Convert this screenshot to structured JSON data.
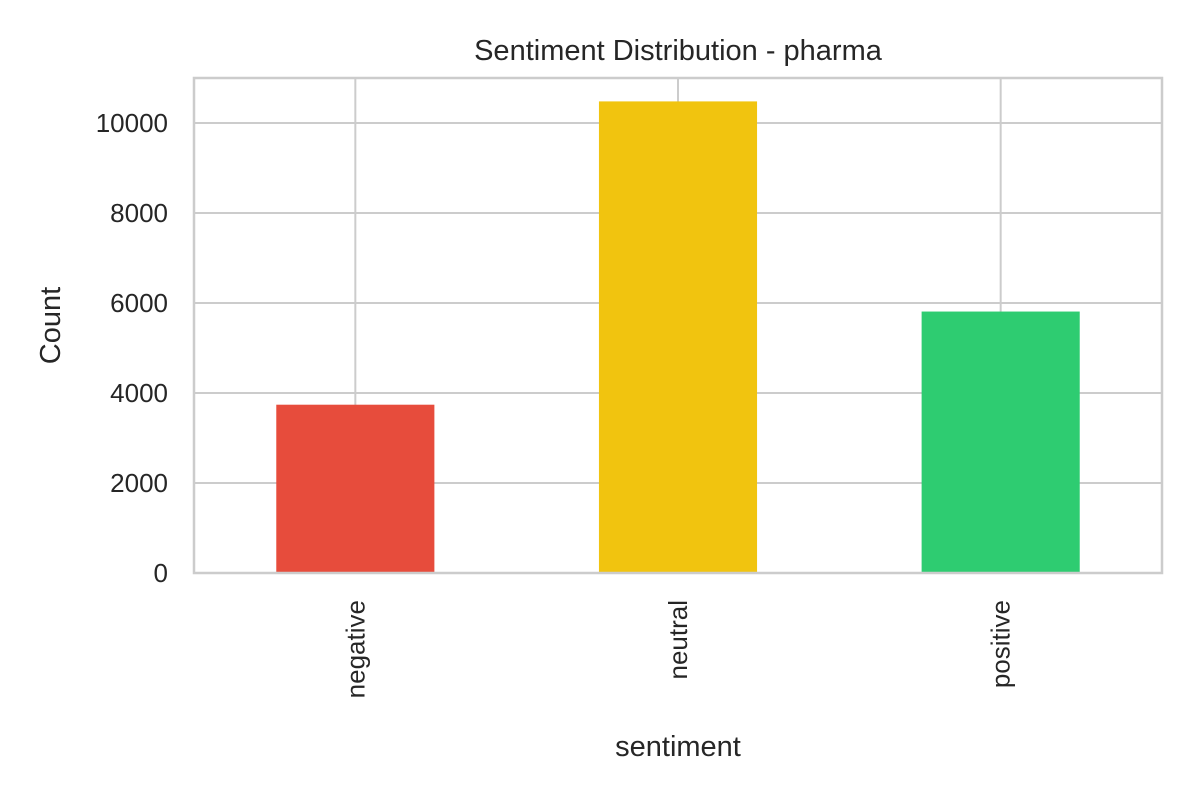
{
  "chart_data": {
    "type": "bar",
    "title": "Sentiment Distribution - pharma",
    "xlabel": "sentiment",
    "ylabel": "Count",
    "categories": [
      "negative",
      "neutral",
      "positive"
    ],
    "values": [
      3740,
      10480,
      5810
    ],
    "colors": [
      "#e74c3c",
      "#f1c40f",
      "#2ecc71"
    ],
    "ylim": [
      0,
      11000
    ],
    "yticks": [
      0,
      2000,
      4000,
      6000,
      8000,
      10000
    ],
    "ytick_labels": [
      "0",
      "2000",
      "4000",
      "6000",
      "8000",
      "10000"
    ],
    "xtick_rotation": "vertical",
    "grid": true,
    "grid_color": "#cccccc",
    "text_color": "#262626"
  }
}
